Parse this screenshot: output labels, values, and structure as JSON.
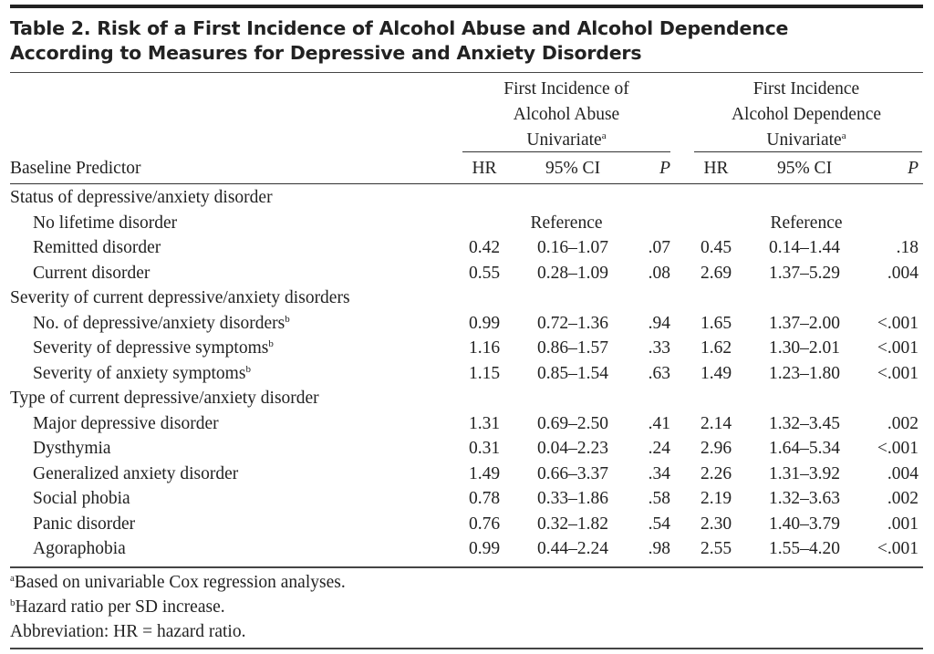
{
  "title": {
    "line1": "Table 2. Risk of a First Incidence of Alcohol Abuse and Alcohol Dependence",
    "line2": "According to Measures for Depressive and Anxiety Disorders"
  },
  "groups": [
    {
      "line1": "First Incidence of",
      "line2": "Alcohol Abuse",
      "line3": "Univariate",
      "sup": "a"
    },
    {
      "line1": "First Incidence",
      "line2": "Alcohol Dependence",
      "line3": "Univariate",
      "sup": "a"
    }
  ],
  "columns": {
    "predictor": "Baseline Predictor",
    "hr": "HR",
    "ci": "95% CI",
    "p": "P"
  },
  "rows": [
    {
      "type": "section",
      "label": "Status of depressive/anxiety disorder"
    },
    {
      "type": "ref",
      "label": "No lifetime disorder",
      "ref1": "Reference",
      "ref2": "Reference"
    },
    {
      "type": "data",
      "label": "Remitted disorder",
      "sup": "",
      "hr1": "0.42",
      "ci1": "0.16–1.07",
      "p1": ".07",
      "hr2": "0.45",
      "ci2": "0.14–1.44",
      "p2": ".18"
    },
    {
      "type": "data",
      "label": "Current disorder",
      "sup": "",
      "hr1": "0.55",
      "ci1": "0.28–1.09",
      "p1": ".08",
      "hr2": "2.69",
      "ci2": "1.37–5.29",
      "p2": ".004"
    },
    {
      "type": "section",
      "label": "Severity of current depressive/anxiety disorders"
    },
    {
      "type": "data",
      "label": "No. of depressive/anxiety disorders",
      "sup": "b",
      "hr1": "0.99",
      "ci1": "0.72–1.36",
      "p1": ".94",
      "hr2": "1.65",
      "ci2": "1.37–2.00",
      "p2": "<.001"
    },
    {
      "type": "data",
      "label": "Severity of depressive symptoms",
      "sup": "b",
      "hr1": "1.16",
      "ci1": "0.86–1.57",
      "p1": ".33",
      "hr2": "1.62",
      "ci2": "1.30–2.01",
      "p2": "<.001"
    },
    {
      "type": "data",
      "label": "Severity of anxiety symptoms",
      "sup": "b",
      "hr1": "1.15",
      "ci1": "0.85–1.54",
      "p1": ".63",
      "hr2": "1.49",
      "ci2": "1.23–1.80",
      "p2": "<.001"
    },
    {
      "type": "section",
      "label": "Type of current depressive/anxiety disorder"
    },
    {
      "type": "data",
      "label": "Major depressive disorder",
      "sup": "",
      "hr1": "1.31",
      "ci1": "0.69–2.50",
      "p1": ".41",
      "hr2": "2.14",
      "ci2": "1.32–3.45",
      "p2": ".002"
    },
    {
      "type": "data",
      "label": "Dysthymia",
      "sup": "",
      "hr1": "0.31",
      "ci1": "0.04–2.23",
      "p1": ".24",
      "hr2": "2.96",
      "ci2": "1.64–5.34",
      "p2": "<.001"
    },
    {
      "type": "data",
      "label": "Generalized anxiety disorder",
      "sup": "",
      "hr1": "1.49",
      "ci1": "0.66–3.37",
      "p1": ".34",
      "hr2": "2.26",
      "ci2": "1.31–3.92",
      "p2": ".004"
    },
    {
      "type": "data",
      "label": "Social phobia",
      "sup": "",
      "hr1": "0.78",
      "ci1": "0.33–1.86",
      "p1": ".58",
      "hr2": "2.19",
      "ci2": "1.32–3.63",
      "p2": ".002"
    },
    {
      "type": "data",
      "label": "Panic disorder",
      "sup": "",
      "hr1": "0.76",
      "ci1": "0.32–1.82",
      "p1": ".54",
      "hr2": "2.30",
      "ci2": "1.40–3.79",
      "p2": ".001"
    },
    {
      "type": "data",
      "label": "Agoraphobia",
      "sup": "",
      "hr1": "0.99",
      "ci1": "0.44–2.24",
      "p1": ".98",
      "hr2": "2.55",
      "ci2": "1.55–4.20",
      "p2": "<.001"
    }
  ],
  "footnotes": [
    {
      "sup": "a",
      "text": "Based on univariable Cox regression analyses."
    },
    {
      "sup": "b",
      "text": "Hazard ratio per SD increase."
    },
    {
      "sup": "",
      "text": "Abbreviation: HR = hazard ratio."
    }
  ]
}
